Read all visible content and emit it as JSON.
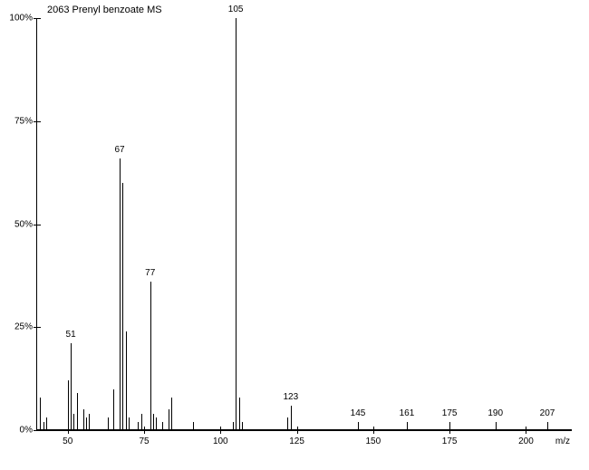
{
  "title": "2063  Prenyl benzoate MS",
  "chart": {
    "type": "bar",
    "background_color": "#ffffff",
    "bar_color": "#000000",
    "axis_color": "#000000",
    "label_fontsize": 10,
    "title_fontsize": 11,
    "x_axis_label": "m/z",
    "xlim_min": 40,
    "xlim_max": 215,
    "ylim_min": 0,
    "ylim_max": 100,
    "y_unit": "%",
    "ytick_step": 25,
    "xtick_step": 25,
    "xtick_start": 50,
    "bar_width": 1,
    "peaks": [
      {
        "mz": 41,
        "intensity": 8
      },
      {
        "mz": 42,
        "intensity": 2
      },
      {
        "mz": 43,
        "intensity": 3
      },
      {
        "mz": 50,
        "intensity": 12
      },
      {
        "mz": 51,
        "intensity": 21,
        "label": "51"
      },
      {
        "mz": 52,
        "intensity": 4
      },
      {
        "mz": 53,
        "intensity": 9
      },
      {
        "mz": 55,
        "intensity": 5
      },
      {
        "mz": 56,
        "intensity": 3
      },
      {
        "mz": 57,
        "intensity": 4
      },
      {
        "mz": 63,
        "intensity": 3
      },
      {
        "mz": 65,
        "intensity": 10
      },
      {
        "mz": 67,
        "intensity": 66,
        "label": "67"
      },
      {
        "mz": 68,
        "intensity": 60
      },
      {
        "mz": 69,
        "intensity": 24
      },
      {
        "mz": 70,
        "intensity": 3
      },
      {
        "mz": 73,
        "intensity": 2
      },
      {
        "mz": 74,
        "intensity": 4
      },
      {
        "mz": 77,
        "intensity": 36,
        "label": "77"
      },
      {
        "mz": 78,
        "intensity": 4
      },
      {
        "mz": 79,
        "intensity": 3
      },
      {
        "mz": 81,
        "intensity": 2
      },
      {
        "mz": 83,
        "intensity": 5
      },
      {
        "mz": 84,
        "intensity": 8
      },
      {
        "mz": 91,
        "intensity": 2
      },
      {
        "mz": 104,
        "intensity": 2
      },
      {
        "mz": 105,
        "intensity": 100,
        "label": "105"
      },
      {
        "mz": 106,
        "intensity": 8
      },
      {
        "mz": 107,
        "intensity": 2
      },
      {
        "mz": 122,
        "intensity": 3
      },
      {
        "mz": 123,
        "intensity": 6,
        "label": "123"
      },
      {
        "mz": 145,
        "intensity": 2,
        "label": "145"
      },
      {
        "mz": 161,
        "intensity": 2,
        "label": "161"
      },
      {
        "mz": 175,
        "intensity": 2,
        "label": "175"
      },
      {
        "mz": 190,
        "intensity": 2,
        "label": "190"
      },
      {
        "mz": 207,
        "intensity": 2,
        "label": "207"
      }
    ]
  }
}
